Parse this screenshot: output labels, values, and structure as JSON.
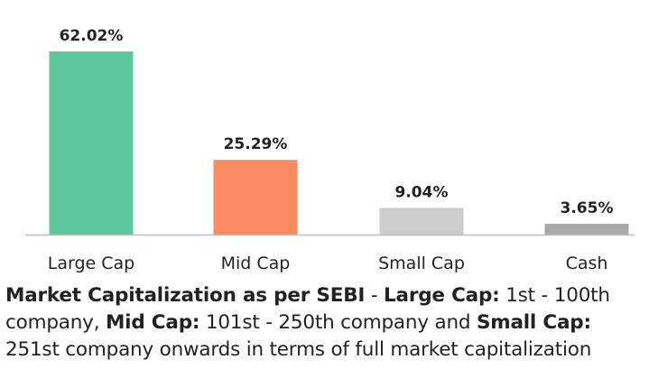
{
  "chart_data": {
    "type": "bar",
    "categories": [
      "Large Cap",
      "Mid Cap",
      "Small Cap",
      "Cash"
    ],
    "values": [
      62.02,
      25.29,
      9.04,
      3.65
    ],
    "value_labels": [
      "62.02%",
      "25.29%",
      "9.04%",
      "3.65%"
    ],
    "colors": [
      "#5dc79d",
      "#f98b63",
      "#cdcdcd",
      "#a8a8a8"
    ],
    "ylim": [
      0,
      62.02
    ],
    "grid": false,
    "legend": "none",
    "title": "",
    "xlabel": "",
    "ylabel": ""
  },
  "note": {
    "t1": "Market Capitalization as per SEBI",
    "t2": " - ",
    "t3": "Large Cap:",
    "t4": " 1st - 100th company, ",
    "t5": "Mid Cap:",
    "t6": " 101st - 250th company and ",
    "t7": "Small Cap:",
    "t8": " 251st company onwards in terms of full market capitalization"
  }
}
